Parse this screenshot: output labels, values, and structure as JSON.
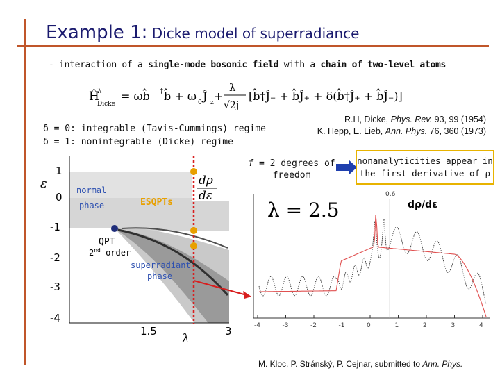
{
  "title": {
    "main": "Example 1:",
    "sub": " Dicke model of superradiance"
  },
  "bullet": {
    "prefix": "- interaction of a ",
    "b1": "single-mode bosonic field",
    "mid": " with a ",
    "b2": "chain of two-level atoms"
  },
  "formula": {
    "lhs": "Ĥ",
    "lhs_sup": "λ",
    "lhs_sub": "Dicke",
    "rhs1": " = ωb̂",
    "dag": "†",
    "rhs2": "b̂ + ω",
    "omega_sub": "0",
    "jz": "Ĵ",
    "jz_sub": "z",
    "plus": " + ",
    "frac_num": "λ",
    "frac_den": "√2j",
    "bracket": "[b̂†Ĵ₋ + b̂Ĵ₊ + δ(b̂†Ĵ₊ + b̂Ĵ₋)]"
  },
  "regimes": {
    "line1": "δ = 0: integrable (Tavis-Cummings) regime",
    "line2": "δ = 1: nonintegrable (Dicke) regime"
  },
  "refs": {
    "line1_pre": "R.H, Dicke, ",
    "line1_journal": "Phys. Rev.",
    "line1_post": " 93, 99 (1954)",
    "line2_pre": "K. Hepp, E. Lieb, ",
    "line2_journal": "Ann. Phys.",
    "line2_post": " 76, 360 (1973)"
  },
  "dof": {
    "f": "f",
    "rest": " = 2 degrees of freedom"
  },
  "nonanal": "nonanalyticities appear in the first derivative of ρ",
  "phase_plot": {
    "eps_label": "ε",
    "lambda_label": "λ",
    "y_ticks": [
      "1",
      "0",
      "-1",
      "-2",
      "-3",
      "-4"
    ],
    "x_ticks": [
      "1.5",
      "3"
    ],
    "deriv_num": "dρ",
    "deriv_den": "dε",
    "normal_phase": "normal phase",
    "esqpts": "ESQPTs",
    "qpt": "QPT",
    "qpt_order": "2nd order",
    "superradiant": "superradiant phase"
  },
  "deriv_plot": {
    "lambda_eq": "λ = 2.5",
    "label": "dρ/dε",
    "y_tick": "0.6",
    "x_ticks": [
      "-4",
      "-3",
      "-2",
      "-1",
      "0",
      "1",
      "2",
      "3",
      "4"
    ]
  },
  "ref2": {
    "pre": "M. Kloc, P. Stránský, P. Cejnar, submitted to ",
    "journal": "Ann. Phys."
  },
  "colors": {
    "accent": "#c0562a",
    "title": "#1a1a6e",
    "highlight": "#e8b300",
    "navy_point": "#1f2d7a",
    "red": "#d81e1e",
    "label_blue": "#2c4fb0",
    "esqpt_orange": "#e8a000"
  }
}
